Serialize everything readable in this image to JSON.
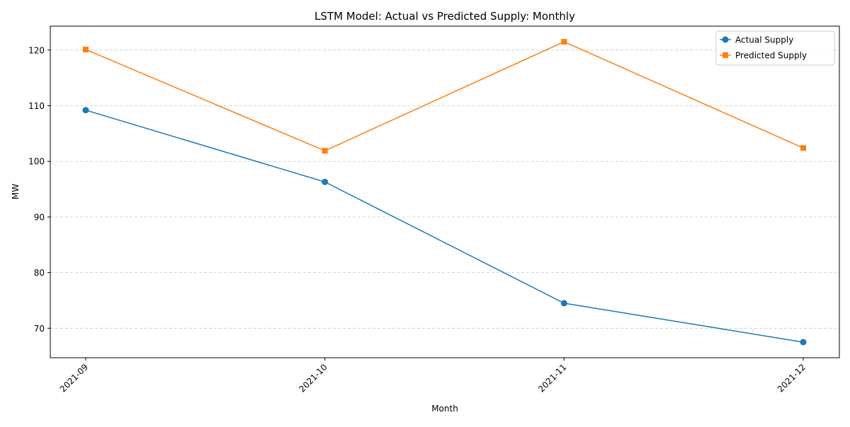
{
  "chart_data": {
    "type": "line",
    "title": "LSTM Model: Actual vs Predicted Supply: Monthly",
    "xlabel": "Month",
    "ylabel": "MW",
    "categories": [
      "2021-09",
      "2021-10",
      "2021-11",
      "2021-12"
    ],
    "ylim": [
      64.7,
      124.3
    ],
    "yticks": [
      70,
      80,
      90,
      100,
      110,
      120
    ],
    "grid": "y-dashed",
    "legend_position": "top-right",
    "series": [
      {
        "name": "Actual Supply",
        "color": "#1f77b4",
        "marker": "circle",
        "values": [
          109.2,
          96.3,
          74.5,
          67.5
        ]
      },
      {
        "name": "Predicted Supply",
        "color": "#ff7f0e",
        "marker": "square",
        "values": [
          120.1,
          101.9,
          121.5,
          102.4
        ]
      }
    ]
  }
}
